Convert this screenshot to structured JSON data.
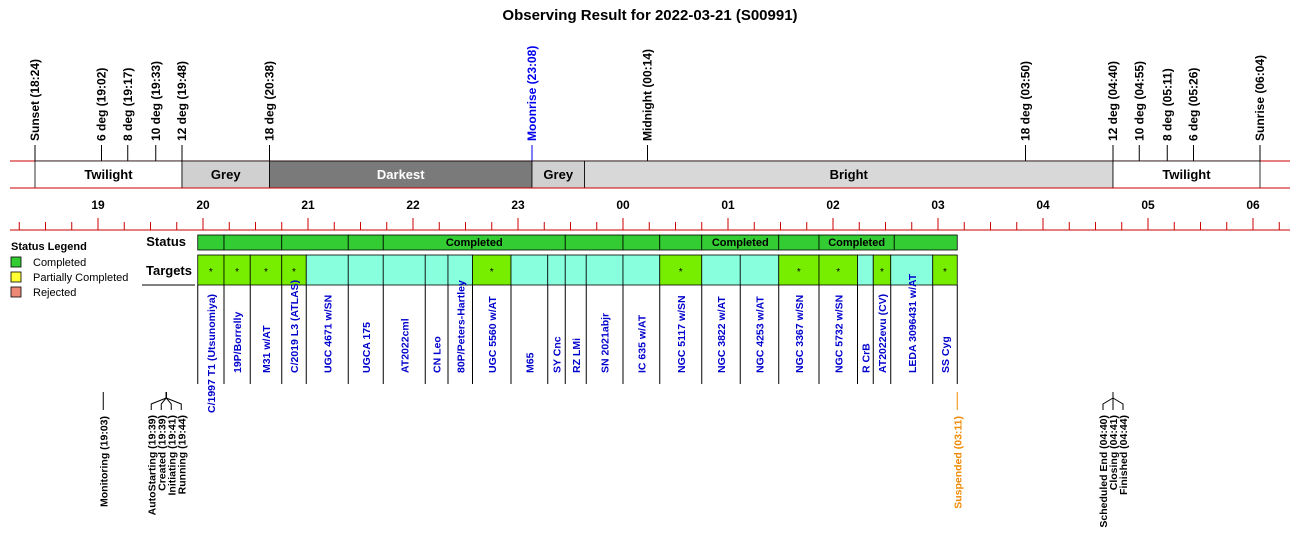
{
  "title": "Observing Result for 2022-03-21 (S00991)",
  "colors": {
    "axis_red": "#cc0000",
    "twilight": "#ffffff",
    "grey": "#d0d0d0",
    "darkest": "#7a7a7a",
    "bright": "#d8d8d8",
    "completed": "#33cc33",
    "partially_completed": "#ffff33",
    "rejected": "#ee8877",
    "target_lime": "#77ee00",
    "target_aqua": "#88ffdd",
    "target_text": "#0000cc",
    "moonrise": "#0000ee",
    "suspended": "#ee8800"
  },
  "chart_data": {
    "type": "timeline",
    "time_range": [
      "18:00",
      "06:20"
    ],
    "top_markers": [
      {
        "label": "Sunset (18:24)",
        "time": "18:24",
        "color": "black"
      },
      {
        "label": "6 deg (19:02)",
        "time": "19:02",
        "color": "black"
      },
      {
        "label": "8 deg (19:17)",
        "time": "19:17",
        "color": "black"
      },
      {
        "label": "10 deg (19:33)",
        "time": "19:33",
        "color": "black"
      },
      {
        "label": "12 deg (19:48)",
        "time": "19:48",
        "color": "black"
      },
      {
        "label": "18 deg (20:38)",
        "time": "20:38",
        "color": "black"
      },
      {
        "label": "Moonrise (23:08)",
        "time": "23:08",
        "color": "blue"
      },
      {
        "label": "Midnight (00:14)",
        "time": "00:14",
        "color": "black"
      },
      {
        "label": "18 deg (03:50)",
        "time": "03:50",
        "color": "black"
      },
      {
        "label": "12 deg (04:40)",
        "time": "04:40",
        "color": "black"
      },
      {
        "label": "10 deg (04:55)",
        "time": "04:55",
        "color": "black"
      },
      {
        "label": "8 deg (05:11)",
        "time": "05:11",
        "color": "black"
      },
      {
        "label": "6 deg (05:26)",
        "time": "05:26",
        "color": "black"
      },
      {
        "label": "Sunrise (06:04)",
        "time": "06:04",
        "color": "black"
      }
    ],
    "sky_bands": [
      {
        "label": "Twilight",
        "start": "18:24",
        "end": "19:48",
        "kind": "twilight"
      },
      {
        "label": "Grey",
        "start": "19:48",
        "end": "20:38",
        "kind": "grey"
      },
      {
        "label": "Darkest",
        "start": "20:38",
        "end": "23:08",
        "kind": "darkest"
      },
      {
        "label": "Grey",
        "start": "23:08",
        "end": "23:38",
        "kind": "grey"
      },
      {
        "label": "Bright",
        "start": "23:38",
        "end": "04:40",
        "kind": "bright"
      },
      {
        "label": "Twilight",
        "start": "04:40",
        "end": "06:04",
        "kind": "twilight"
      }
    ],
    "hour_labels": [
      "19",
      "20",
      "21",
      "22",
      "23",
      "00",
      "01",
      "02",
      "03",
      "04",
      "05",
      "06"
    ],
    "status_label": "Status",
    "targets_label": "Targets",
    "status_segments": [
      {
        "start": "19:57",
        "end": "20:12",
        "text": ""
      },
      {
        "start": "20:12",
        "end": "20:45",
        "text": ""
      },
      {
        "start": "20:45",
        "end": "21:23",
        "text": ""
      },
      {
        "start": "21:23",
        "end": "21:43",
        "text": ""
      },
      {
        "start": "21:43",
        "end": "23:27",
        "text": "Completed"
      },
      {
        "start": "23:27",
        "end": "00:00",
        "text": ""
      },
      {
        "start": "00:00",
        "end": "00:21",
        "text": ""
      },
      {
        "start": "00:21",
        "end": "00:45",
        "text": ""
      },
      {
        "start": "00:45",
        "end": "01:29",
        "text": "Completed"
      },
      {
        "start": "01:29",
        "end": "01:52",
        "text": ""
      },
      {
        "start": "01:52",
        "end": "02:35",
        "text": "Completed"
      },
      {
        "start": "02:35",
        "end": "03:11",
        "text": ""
      }
    ],
    "targets": [
      {
        "name": "C/1997 T1 (Utsunomiya)",
        "start": "19:57",
        "end": "20:12",
        "fill": "lime",
        "mark": "*"
      },
      {
        "name": "19P/Borrelly",
        "start": "20:12",
        "end": "20:27",
        "fill": "lime",
        "mark": "*"
      },
      {
        "name": "M31 w/AT",
        "start": "20:27",
        "end": "20:45",
        "fill": "lime",
        "mark": "*"
      },
      {
        "name": "C/2019 L3 (ATLAS)",
        "start": "20:45",
        "end": "20:59",
        "fill": "lime",
        "mark": "*"
      },
      {
        "name": "UGC 4671 w/SN",
        "start": "20:59",
        "end": "21:23",
        "fill": "aqua",
        "mark": ""
      },
      {
        "name": "UGCA 175",
        "start": "21:23",
        "end": "21:43",
        "fill": "aqua",
        "mark": ""
      },
      {
        "name": "AT2022cml",
        "start": "21:43",
        "end": "22:07",
        "fill": "aqua",
        "mark": ""
      },
      {
        "name": "CN Leo",
        "start": "22:07",
        "end": "22:20",
        "fill": "aqua",
        "mark": ""
      },
      {
        "name": "80P/Peters-Hartley",
        "start": "22:20",
        "end": "22:34",
        "fill": "aqua",
        "mark": ""
      },
      {
        "name": "UGC 5560 w/AT",
        "start": "22:34",
        "end": "22:56",
        "fill": "lime",
        "mark": "*"
      },
      {
        "name": "M65",
        "start": "22:56",
        "end": "23:17",
        "fill": "aqua",
        "mark": ""
      },
      {
        "name": "SY Cnc",
        "start": "23:17",
        "end": "23:27",
        "fill": "aqua",
        "mark": ""
      },
      {
        "name": "RZ LMi",
        "start": "23:27",
        "end": "23:39",
        "fill": "aqua",
        "mark": ""
      },
      {
        "name": "SN 2021abjr",
        "start": "23:39",
        "end": "00:00",
        "fill": "aqua",
        "mark": ""
      },
      {
        "name": "IC 635 w/AT",
        "start": "00:00",
        "end": "00:21",
        "fill": "aqua",
        "mark": ""
      },
      {
        "name": "NGC 5117 w/SN",
        "start": "00:21",
        "end": "00:45",
        "fill": "lime",
        "mark": "*"
      },
      {
        "name": "NGC 3822 w/AT",
        "start": "00:45",
        "end": "01:07",
        "fill": "aqua",
        "mark": ""
      },
      {
        "name": "NGC 4253 w/AT",
        "start": "01:07",
        "end": "01:29",
        "fill": "aqua",
        "mark": ""
      },
      {
        "name": "NGC 3367 w/SN",
        "start": "01:29",
        "end": "01:52",
        "fill": "lime",
        "mark": "*"
      },
      {
        "name": "NGC 5732 w/SN",
        "start": "01:52",
        "end": "02:14",
        "fill": "lime",
        "mark": "*"
      },
      {
        "name": "R CrB",
        "start": "02:14",
        "end": "02:23",
        "fill": "aqua",
        "mark": ""
      },
      {
        "name": "AT2022evu (CV)",
        "start": "02:23",
        "end": "02:33",
        "fill": "lime",
        "mark": "*"
      },
      {
        "name": "LEDA 3096431 w/AT",
        "start": "02:33",
        "end": "02:57",
        "fill": "aqua",
        "mark": ""
      },
      {
        "name": "SS Cyg",
        "start": "02:57",
        "end": "03:11",
        "fill": "lime",
        "mark": "*"
      }
    ],
    "events": [
      {
        "label": "Monitoring (19:03)",
        "time": "19:03",
        "color": "black"
      },
      {
        "label": "AutoStarting (19:39)",
        "time": "19:39",
        "color": "black"
      },
      {
        "label": "Created (19:39)",
        "time": "19:39",
        "color": "black"
      },
      {
        "label": "Initiating (19:41)",
        "time": "19:41",
        "color": "black"
      },
      {
        "label": "Running (19:44)",
        "time": "19:44",
        "color": "black"
      },
      {
        "label": "Suspended (03:11)",
        "time": "03:11",
        "color": "orange"
      },
      {
        "label": "Scheduled End (04:40)",
        "time": "04:40",
        "color": "black"
      },
      {
        "label": "Closing (04:41)",
        "time": "04:41",
        "color": "black"
      },
      {
        "label": "Finished (04:44)",
        "time": "04:44",
        "color": "black"
      }
    ],
    "legend": {
      "title": "Status Legend",
      "placement": "left",
      "items": [
        {
          "label": "Completed",
          "color_key": "completed"
        },
        {
          "label": "Partially Completed",
          "color_key": "partially_completed"
        },
        {
          "label": "Rejected",
          "color_key": "rejected"
        }
      ]
    }
  }
}
